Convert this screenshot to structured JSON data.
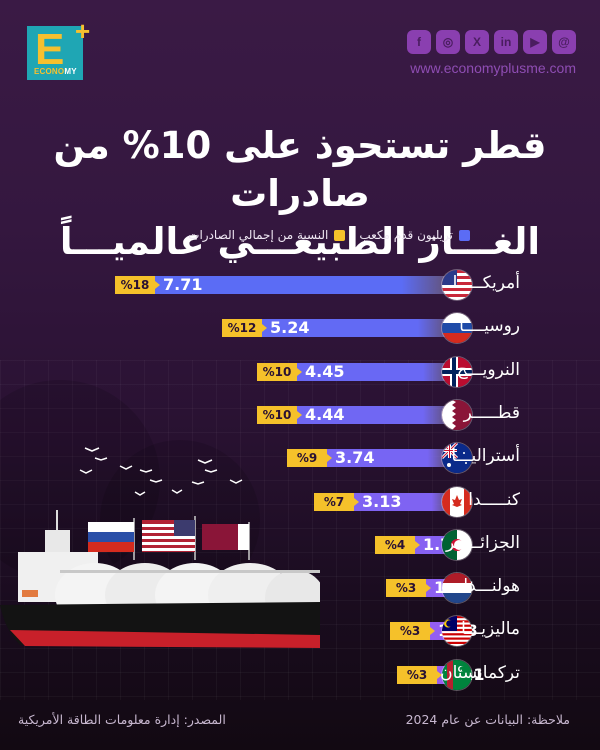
{
  "brand": {
    "logo_letter": "E",
    "logo_plus": "+",
    "logo_text_a": "ECONO",
    "logo_text_b": "MY",
    "website": "www.economyplusme.com",
    "social": [
      {
        "icon": "facebook-icon",
        "glyph": "f"
      },
      {
        "icon": "instagram-icon",
        "glyph": "◎"
      },
      {
        "icon": "x-icon",
        "glyph": "X"
      },
      {
        "icon": "linkedin-icon",
        "glyph": "in"
      },
      {
        "icon": "youtube-icon",
        "glyph": "▶"
      },
      {
        "icon": "threads-icon",
        "glyph": "@"
      }
    ]
  },
  "title": {
    "line1": "قطر تستحوذ على 10% من صادرات",
    "line2": "الغـــاز الطبيعـــي عالميـــاً"
  },
  "legend": {
    "volume": "تريليون قدم مكعب",
    "share": "النسبة من إجمالي الصادرات"
  },
  "colors": {
    "bar_top": "#5b6cf5",
    "bar_bottom": "#9b5cf0",
    "pct_badge": "#f5c12a",
    "background": "#34173f"
  },
  "chart_data": {
    "type": "bar",
    "orientation": "horizontal",
    "title": "قطر تستحوذ على 10% من صادرات الغاز الطبيعي عالمياً",
    "categories": [
      "أمريكا",
      "روسيا",
      "النرويج",
      "قطر",
      "أستراليا",
      "كندا",
      "الجزائر",
      "هولندا",
      "ماليزيا",
      "تركمانستان"
    ],
    "series": [
      {
        "name": "تريليون قدم مكعب",
        "values": [
          7.71,
          5.24,
          4.45,
          4.44,
          3.74,
          3.13,
          1.73,
          1.47,
          1.38,
          1.21
        ]
      },
      {
        "name": "النسبة من إجمالي الصادرات",
        "values": [
          18,
          12,
          10,
          10,
          9,
          7,
          4,
          3,
          3,
          3
        ]
      }
    ],
    "legend_position": "top",
    "grid": false
  },
  "rows": [
    {
      "country": "أمريكـــــا",
      "value": "7.71",
      "pct": "%18",
      "flag": "us"
    },
    {
      "country": "روسيــــا",
      "value": "5.24",
      "pct": "%12",
      "flag": "ru"
    },
    {
      "country": "النرويـــج",
      "value": "4.45",
      "pct": "%10",
      "flag": "no"
    },
    {
      "country": "قطـــــر",
      "value": "4.44",
      "pct": "%10",
      "flag": "qa"
    },
    {
      "country": "أستراليـــا",
      "value": "3.74",
      "pct": "%9",
      "flag": "au"
    },
    {
      "country": "كنـــــدا",
      "value": "3.13",
      "pct": "%7",
      "flag": "ca"
    },
    {
      "country": "الجزائـــــر",
      "value": "1.73",
      "pct": "%4",
      "flag": "dz"
    },
    {
      "country": "هولنـــدا",
      "value": "1.47",
      "pct": "%3",
      "flag": "nl"
    },
    {
      "country": "ماليزيـــا",
      "value": "1.38",
      "pct": "%3",
      "flag": "my"
    },
    {
      "country": "تركمانستان",
      "value": "1.21",
      "pct": "%3",
      "flag": "tm"
    }
  ],
  "footer": {
    "note": "ملاحظة: البيانات عن عام 2024",
    "source": "المصدر: إدارة معلومات الطاقة الأمريكية"
  }
}
